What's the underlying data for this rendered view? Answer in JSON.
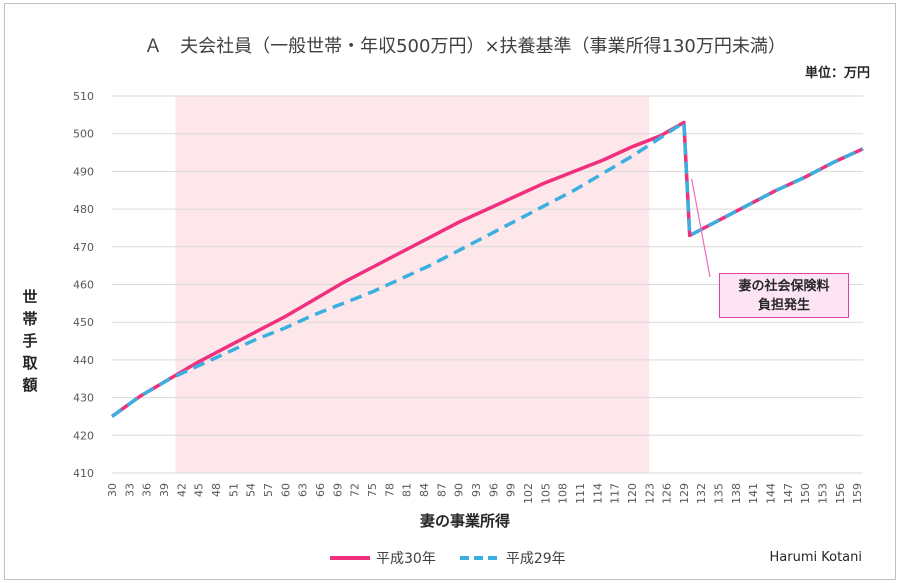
{
  "chart_data": {
    "type": "line",
    "title": "Ａ　夫会社員（一般世帯・年収500万円）×扶養基準（事業所得130万円未満）",
    "unit_label": "単位：万円",
    "xlabel": "妻の事業所得",
    "ylabel": "世帯手取額",
    "ylim": [
      410,
      510
    ],
    "yticks": [
      410,
      420,
      430,
      440,
      450,
      460,
      470,
      480,
      490,
      500,
      510
    ],
    "xlim": [
      30,
      160
    ],
    "xticks": [
      30,
      33,
      36,
      39,
      42,
      45,
      48,
      51,
      54,
      57,
      60,
      63,
      66,
      69,
      72,
      75,
      78,
      81,
      84,
      87,
      90,
      93,
      96,
      99,
      102,
      105,
      108,
      111,
      114,
      117,
      120,
      123,
      126,
      129,
      132,
      135,
      138,
      141,
      144,
      147,
      150,
      153,
      156,
      159
    ],
    "grid": true,
    "shaded_region": {
      "x": [
        41,
        123
      ],
      "color": "#fde7ea"
    },
    "legend_position": "bottom",
    "series": [
      {
        "name": "平成30年",
        "color": "#f0307c",
        "style": "solid",
        "points": [
          [
            30,
            425
          ],
          [
            35,
            430.5
          ],
          [
            40,
            435
          ],
          [
            45,
            439.5
          ],
          [
            50,
            443.5
          ],
          [
            55,
            447.5
          ],
          [
            60,
            451.5
          ],
          [
            65,
            456
          ],
          [
            70,
            460.5
          ],
          [
            75,
            464.5
          ],
          [
            80,
            468.5
          ],
          [
            85,
            472.5
          ],
          [
            90,
            476.5
          ],
          [
            95,
            480
          ],
          [
            100,
            483.5
          ],
          [
            105,
            487
          ],
          [
            110,
            490
          ],
          [
            115,
            493
          ],
          [
            120,
            496.5
          ],
          [
            125,
            499.5
          ],
          [
            129,
            503
          ],
          [
            130,
            473
          ],
          [
            135,
            477
          ],
          [
            140,
            481
          ],
          [
            145,
            485
          ],
          [
            150,
            488.5
          ],
          [
            155,
            492.5
          ],
          [
            160,
            496
          ]
        ]
      },
      {
        "name": "平成29年",
        "color": "#3bb0e0",
        "style": "dashed",
        "points": [
          [
            30,
            425
          ],
          [
            35,
            430.5
          ],
          [
            40,
            435
          ],
          [
            45,
            438.5
          ],
          [
            50,
            442
          ],
          [
            55,
            445.5
          ],
          [
            60,
            448.5
          ],
          [
            65,
            452
          ],
          [
            70,
            455
          ],
          [
            75,
            458
          ],
          [
            80,
            461.5
          ],
          [
            85,
            465
          ],
          [
            90,
            469
          ],
          [
            95,
            473
          ],
          [
            100,
            477
          ],
          [
            105,
            481
          ],
          [
            110,
            485
          ],
          [
            115,
            489.5
          ],
          [
            120,
            494
          ],
          [
            125,
            499
          ],
          [
            129,
            503
          ],
          [
            130,
            473
          ],
          [
            135,
            477
          ],
          [
            140,
            481
          ],
          [
            145,
            485
          ],
          [
            150,
            488.5
          ],
          [
            155,
            492.5
          ],
          [
            160,
            496
          ]
        ]
      }
    ],
    "annotation": {
      "text_line1": "妻の社会保険料",
      "text_line2": "負担発生",
      "x": 130,
      "y": 488
    },
    "credit": "Harumi Kotani"
  }
}
